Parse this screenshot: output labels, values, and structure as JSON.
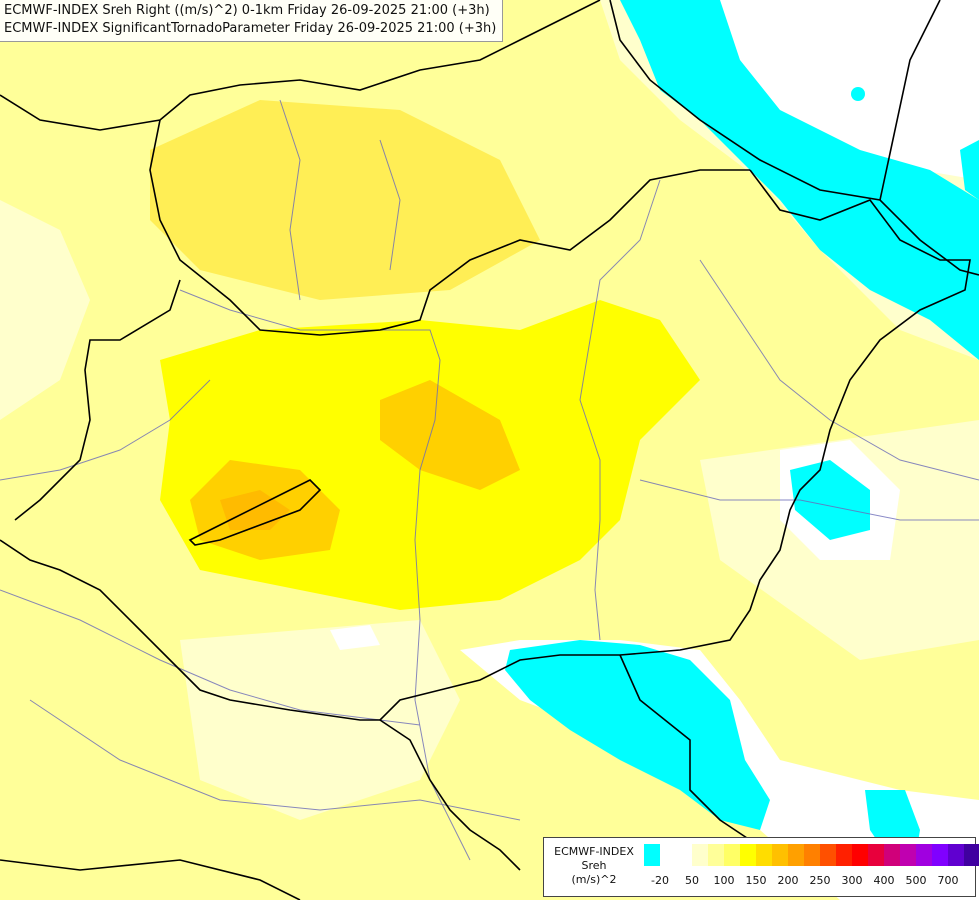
{
  "title": {
    "line1": "ECMWF-INDEX Sreh Right ((m/s)^2) 0-1km Friday 26-09-2025 21:00 (+3h)",
    "line2": "ECMWF-INDEX SignificantTornadoParameter Friday 26-09-2025 21:00 (+3h)"
  },
  "legend": {
    "line1": "ECMWF-INDEX",
    "line2": "Sreh",
    "line3": "(m/s)^2",
    "colors": [
      "#00ffff",
      "#ffffff",
      "#ffffff",
      "#ffffcc",
      "#ffff99",
      "#ffff66",
      "#ffff00",
      "#ffdd00",
      "#ffc000",
      "#ffa000",
      "#ff8000",
      "#ff5000",
      "#ff2000",
      "#ff0000",
      "#e8003c",
      "#d0007a",
      "#c000b0",
      "#a000e0",
      "#8000ff",
      "#6000d0",
      "#4000a0",
      "#200080"
    ],
    "ticks": [
      "-20",
      "50",
      "100",
      "150",
      "200",
      "250",
      "300",
      "400",
      "500",
      "700"
    ]
  }
}
